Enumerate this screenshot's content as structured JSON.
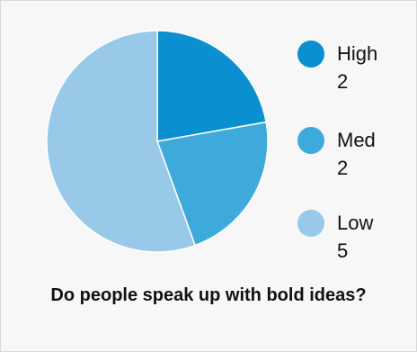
{
  "colors": {
    "high": "#0a8fd1",
    "med": "#3eaadc",
    "low": "#98c9e9",
    "background": "#f7f7f7",
    "border": "#d9d9d9"
  },
  "chart_data": {
    "type": "pie",
    "title": "Do people speak up with bold ideas?",
    "categories": [
      "High",
      "Med",
      "Low"
    ],
    "values": [
      2,
      2,
      5
    ],
    "legend_position": "right"
  }
}
